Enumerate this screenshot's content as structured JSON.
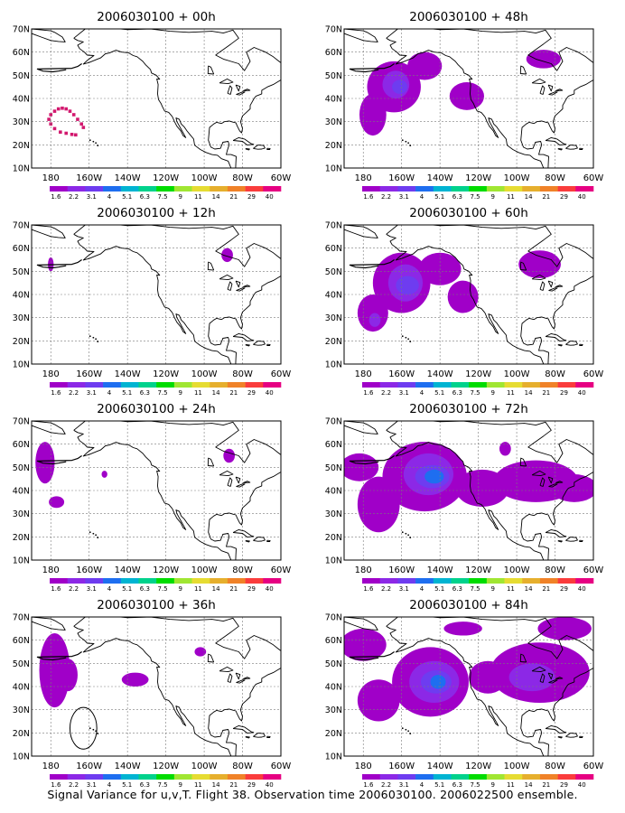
{
  "caption": "Signal Variance for u,v,T. Flight 38. Observation time 2006030100. 2006022500 ensemble.",
  "colors": {
    "ocean": "#ffffff",
    "land_line": "#000000",
    "grid_line": "#7a7a7a",
    "palette": [
      "#a000c8",
      "#8c28e6",
      "#6e3cf0",
      "#1e6ef0",
      "#00b4d2",
      "#00d28c",
      "#00dc00",
      "#a0e632",
      "#e6dc32",
      "#e6af2d",
      "#f08228",
      "#fa3c3c",
      "#e60082"
    ]
  },
  "chart_data": {
    "type": "heatmap",
    "shared": {
      "x_ticks": [
        "180",
        "160W",
        "140W",
        "120W",
        "100W",
        "80W",
        "60W"
      ],
      "y_ticks": [
        "10N",
        "20N",
        "30N",
        "40N",
        "50N",
        "60N",
        "70N"
      ],
      "lon_range": [
        -190,
        -60
      ],
      "lat_range": [
        10,
        70
      ],
      "colorbar_labels": [
        "1.6",
        "2.2",
        "3.1",
        "4",
        "5.1",
        "6.3",
        "7.5",
        "9",
        "11",
        "14",
        "21",
        "29",
        "40"
      ],
      "grid": true
    },
    "panels": [
      {
        "title": "2006030100 + 00h",
        "kind": "dots",
        "dots": [
          [
            -181,
            31
          ],
          [
            -180,
            33
          ],
          [
            -178,
            34.5
          ],
          [
            -176,
            35.5
          ],
          [
            -174,
            35.8
          ],
          [
            -172,
            35.5
          ],
          [
            -170,
            34.5
          ],
          [
            -168,
            33
          ],
          [
            -166,
            31
          ],
          [
            -164,
            29
          ],
          [
            -163,
            27.5
          ],
          [
            -180,
            29
          ],
          [
            -178,
            27
          ],
          [
            -175,
            25.5
          ],
          [
            -172,
            25
          ],
          [
            -169,
            24.5
          ],
          [
            -167,
            24.3
          ]
        ],
        "blobs": []
      },
      {
        "title": "2006030100 + 48h",
        "kind": "blobs",
        "blobs": [
          {
            "lon": -164,
            "lat": 45,
            "rx": 14,
            "ry": 11,
            "level": 1
          },
          {
            "lon": -175,
            "lat": 33,
            "rx": 7,
            "ry": 9,
            "level": 1
          },
          {
            "lon": -148,
            "lat": 54,
            "rx": 9,
            "ry": 6,
            "level": 1
          },
          {
            "lon": -126,
            "lat": 41,
            "rx": 9,
            "ry": 6,
            "level": 1
          },
          {
            "lon": -86,
            "lat": 57,
            "rx": 9,
            "ry": 4,
            "level": 1
          },
          {
            "lon": -163,
            "lat": 46,
            "rx": 7,
            "ry": 6,
            "level": 2
          },
          {
            "lon": -161,
            "lat": 45,
            "rx": 4,
            "ry": 3,
            "level": 3
          }
        ]
      },
      {
        "title": "2006030100 + 12h",
        "kind": "blobs",
        "blobs": [
          {
            "lon": -180,
            "lat": 53,
            "rx": 1.5,
            "ry": 3,
            "level": 1
          },
          {
            "lon": -88,
            "lat": 57,
            "rx": 3,
            "ry": 3,
            "level": 1
          }
        ]
      },
      {
        "title": "2006030100 + 60h",
        "kind": "blobs",
        "blobs": [
          {
            "lon": -160,
            "lat": 45,
            "rx": 15,
            "ry": 13,
            "level": 1
          },
          {
            "lon": -175,
            "lat": 32,
            "rx": 8,
            "ry": 8,
            "level": 1
          },
          {
            "lon": -140,
            "lat": 51,
            "rx": 11,
            "ry": 7,
            "level": 1
          },
          {
            "lon": -128,
            "lat": 39,
            "rx": 8,
            "ry": 7,
            "level": 1
          },
          {
            "lon": -88,
            "lat": 53,
            "rx": 11,
            "ry": 6,
            "level": 1
          },
          {
            "lon": -158,
            "lat": 45,
            "rx": 9,
            "ry": 8,
            "level": 2
          },
          {
            "lon": -157,
            "lat": 44,
            "rx": 6,
            "ry": 4,
            "level": 3
          },
          {
            "lon": -174,
            "lat": 29,
            "rx": 3,
            "ry": 3,
            "level": 2
          }
        ]
      },
      {
        "title": "2006030100 + 24h",
        "kind": "blobs",
        "blobs": [
          {
            "lon": -183,
            "lat": 52,
            "rx": 5,
            "ry": 9,
            "level": 1
          },
          {
            "lon": -177,
            "lat": 35,
            "rx": 4,
            "ry": 2.5,
            "level": 1
          },
          {
            "lon": -152,
            "lat": 47,
            "rx": 1.5,
            "ry": 1.5,
            "level": 1
          },
          {
            "lon": -87,
            "lat": 55,
            "rx": 3,
            "ry": 3,
            "level": 1
          }
        ]
      },
      {
        "title": "2006030100 + 72h",
        "kind": "blobs",
        "blobs": [
          {
            "lon": -148,
            "lat": 46,
            "rx": 22,
            "ry": 15,
            "level": 1
          },
          {
            "lon": -172,
            "lat": 34,
            "rx": 11,
            "ry": 12,
            "level": 1
          },
          {
            "lon": -182,
            "lat": 50,
            "rx": 10,
            "ry": 6,
            "level": 1
          },
          {
            "lon": -118,
            "lat": 41,
            "rx": 14,
            "ry": 8,
            "level": 1
          },
          {
            "lon": -90,
            "lat": 44,
            "rx": 22,
            "ry": 9,
            "level": 1
          },
          {
            "lon": -70,
            "lat": 41,
            "rx": 12,
            "ry": 6,
            "level": 1
          },
          {
            "lon": -106,
            "lat": 58,
            "rx": 3,
            "ry": 3,
            "level": 1
          },
          {
            "lon": -146,
            "lat": 47,
            "rx": 13,
            "ry": 9,
            "level": 2
          },
          {
            "lon": -144,
            "lat": 46,
            "rx": 9,
            "ry": 5,
            "level": 3
          },
          {
            "lon": -143,
            "lat": 46,
            "rx": 5,
            "ry": 3,
            "level": 4
          }
        ]
      },
      {
        "title": "2006030100 + 36h",
        "kind": "blobs",
        "blobs": [
          {
            "lon": -178,
            "lat": 47,
            "rx": 8,
            "ry": 16,
            "level": 1
          },
          {
            "lon": -171,
            "lat": 45,
            "rx": 5,
            "ry": 7,
            "level": 1
          },
          {
            "lon": -136,
            "lat": 43,
            "rx": 7,
            "ry": 3,
            "level": 1
          },
          {
            "lon": -102,
            "lat": 55,
            "rx": 3,
            "ry": 2,
            "level": 1
          }
        ],
        "circle": {
          "lon": -163,
          "lat": 22,
          "rx": 7,
          "ry": 9
        }
      },
      {
        "title": "2006030100 + 84h",
        "kind": "blobs",
        "blobs": [
          {
            "lon": -145,
            "lat": 42,
            "rx": 20,
            "ry": 15,
            "level": 1
          },
          {
            "lon": -172,
            "lat": 34,
            "rx": 11,
            "ry": 9,
            "level": 1
          },
          {
            "lon": -180,
            "lat": 58,
            "rx": 12,
            "ry": 7,
            "level": 1
          },
          {
            "lon": -128,
            "lat": 65,
            "rx": 10,
            "ry": 3,
            "level": 1
          },
          {
            "lon": -88,
            "lat": 46,
            "rx": 26,
            "ry": 13,
            "level": 1
          },
          {
            "lon": -75,
            "lat": 65,
            "rx": 14,
            "ry": 5,
            "level": 1
          },
          {
            "lon": -115,
            "lat": 44,
            "rx": 10,
            "ry": 7,
            "level": 1
          },
          {
            "lon": -143,
            "lat": 42,
            "rx": 13,
            "ry": 9,
            "level": 2
          },
          {
            "lon": -142,
            "lat": 42,
            "rx": 8,
            "ry": 5,
            "level": 3
          },
          {
            "lon": -141,
            "lat": 42,
            "rx": 4,
            "ry": 3,
            "level": 4
          },
          {
            "lon": -92,
            "lat": 44,
            "rx": 12,
            "ry": 6,
            "level": 2
          }
        ]
      }
    ]
  }
}
